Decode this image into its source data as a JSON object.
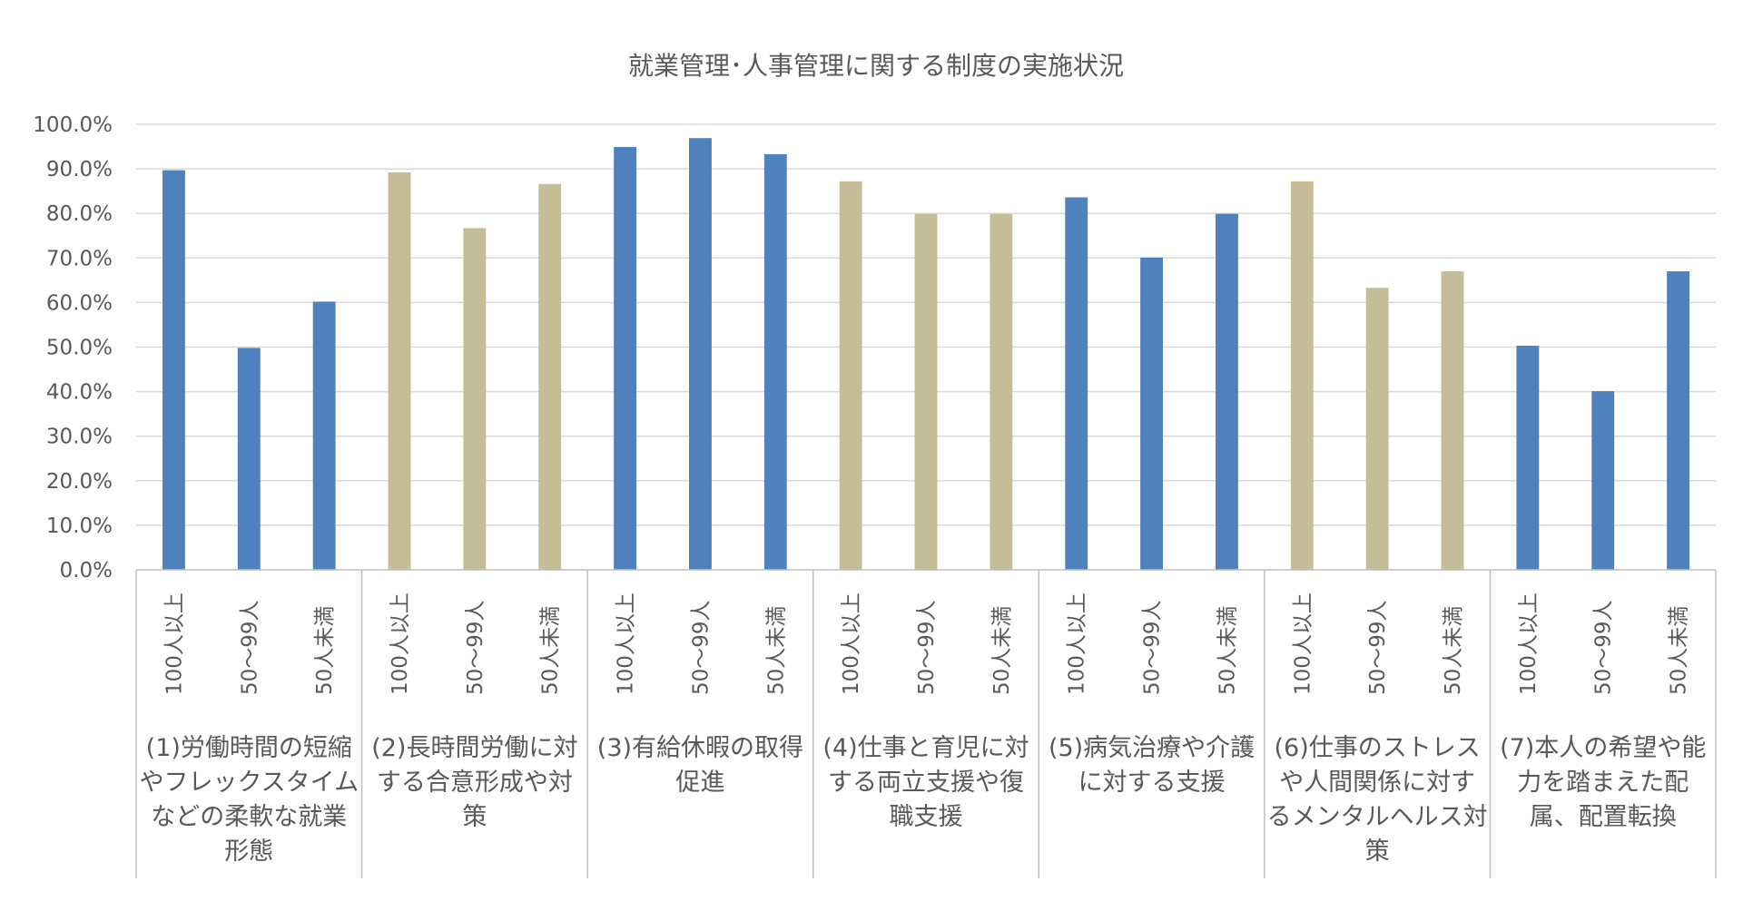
{
  "chart_data": {
    "type": "bar",
    "title": "就業管理･人事管理に関する制度の実施状況",
    "xlabel": "",
    "ylabel": "",
    "ylim": [
      0,
      100
    ],
    "y_ticks": [
      "0.0%",
      "10.0%",
      "20.0%",
      "30.0%",
      "40.0%",
      "50.0%",
      "60.0%",
      "70.0%",
      "80.0%",
      "90.0%",
      "100.0%"
    ],
    "grid": true,
    "legend": "none",
    "colors": {
      "blue": "#4f81bd",
      "tan": "#c4bd97"
    },
    "groups": [
      {
        "label_lines": [
          "(1)労働時間の短縮",
          "やフレックスタイム",
          "などの柔軟な就業",
          "形態"
        ],
        "color": "blue",
        "bars": [
          {
            "category": "100人以上",
            "value": 89.7
          },
          {
            "category": "50～99人",
            "value": 49.8
          },
          {
            "category": "50人未満",
            "value": 60.2
          }
        ]
      },
      {
        "label_lines": [
          "(2)長時間労働に対",
          "する合意形成や対",
          "策"
        ],
        "color": "tan",
        "bars": [
          {
            "category": "100人以上",
            "value": 89.2
          },
          {
            "category": "50～99人",
            "value": 76.7
          },
          {
            "category": "50人未満",
            "value": 86.6
          }
        ]
      },
      {
        "label_lines": [
          "(3)有給休暇の取得",
          "促進"
        ],
        "color": "blue",
        "bars": [
          {
            "category": "100人以上",
            "value": 94.9
          },
          {
            "category": "50～99人",
            "value": 96.9
          },
          {
            "category": "50人未満",
            "value": 93.3
          }
        ]
      },
      {
        "label_lines": [
          "(4)仕事と育児に対",
          "する両立支援や復",
          "職支援"
        ],
        "color": "tan",
        "bars": [
          {
            "category": "100人以上",
            "value": 87.2
          },
          {
            "category": "50～99人",
            "value": 79.9
          },
          {
            "category": "50人未満",
            "value": 79.9
          }
        ]
      },
      {
        "label_lines": [
          "(5)病気治療や介護",
          "に対する支援"
        ],
        "color": "blue",
        "bars": [
          {
            "category": "100人以上",
            "value": 83.6
          },
          {
            "category": "50～99人",
            "value": 70.1
          },
          {
            "category": "50人未満",
            "value": 79.9
          }
        ]
      },
      {
        "label_lines": [
          "(6)仕事のストレス",
          "や人間関係に対す",
          "るメンタルヘルス対",
          "策"
        ],
        "color": "tan",
        "bars": [
          {
            "category": "100人以上",
            "value": 87.2
          },
          {
            "category": "50～99人",
            "value": 63.3
          },
          {
            "category": "50人未満",
            "value": 67.0
          }
        ]
      },
      {
        "label_lines": [
          "(7)本人の希望や能",
          "力を踏まえた配",
          "属、配置転換"
        ],
        "color": "blue",
        "bars": [
          {
            "category": "100人以上",
            "value": 50.3
          },
          {
            "category": "50～99人",
            "value": 40.1
          },
          {
            "category": "50人未満",
            "value": 67.0
          }
        ]
      }
    ]
  }
}
